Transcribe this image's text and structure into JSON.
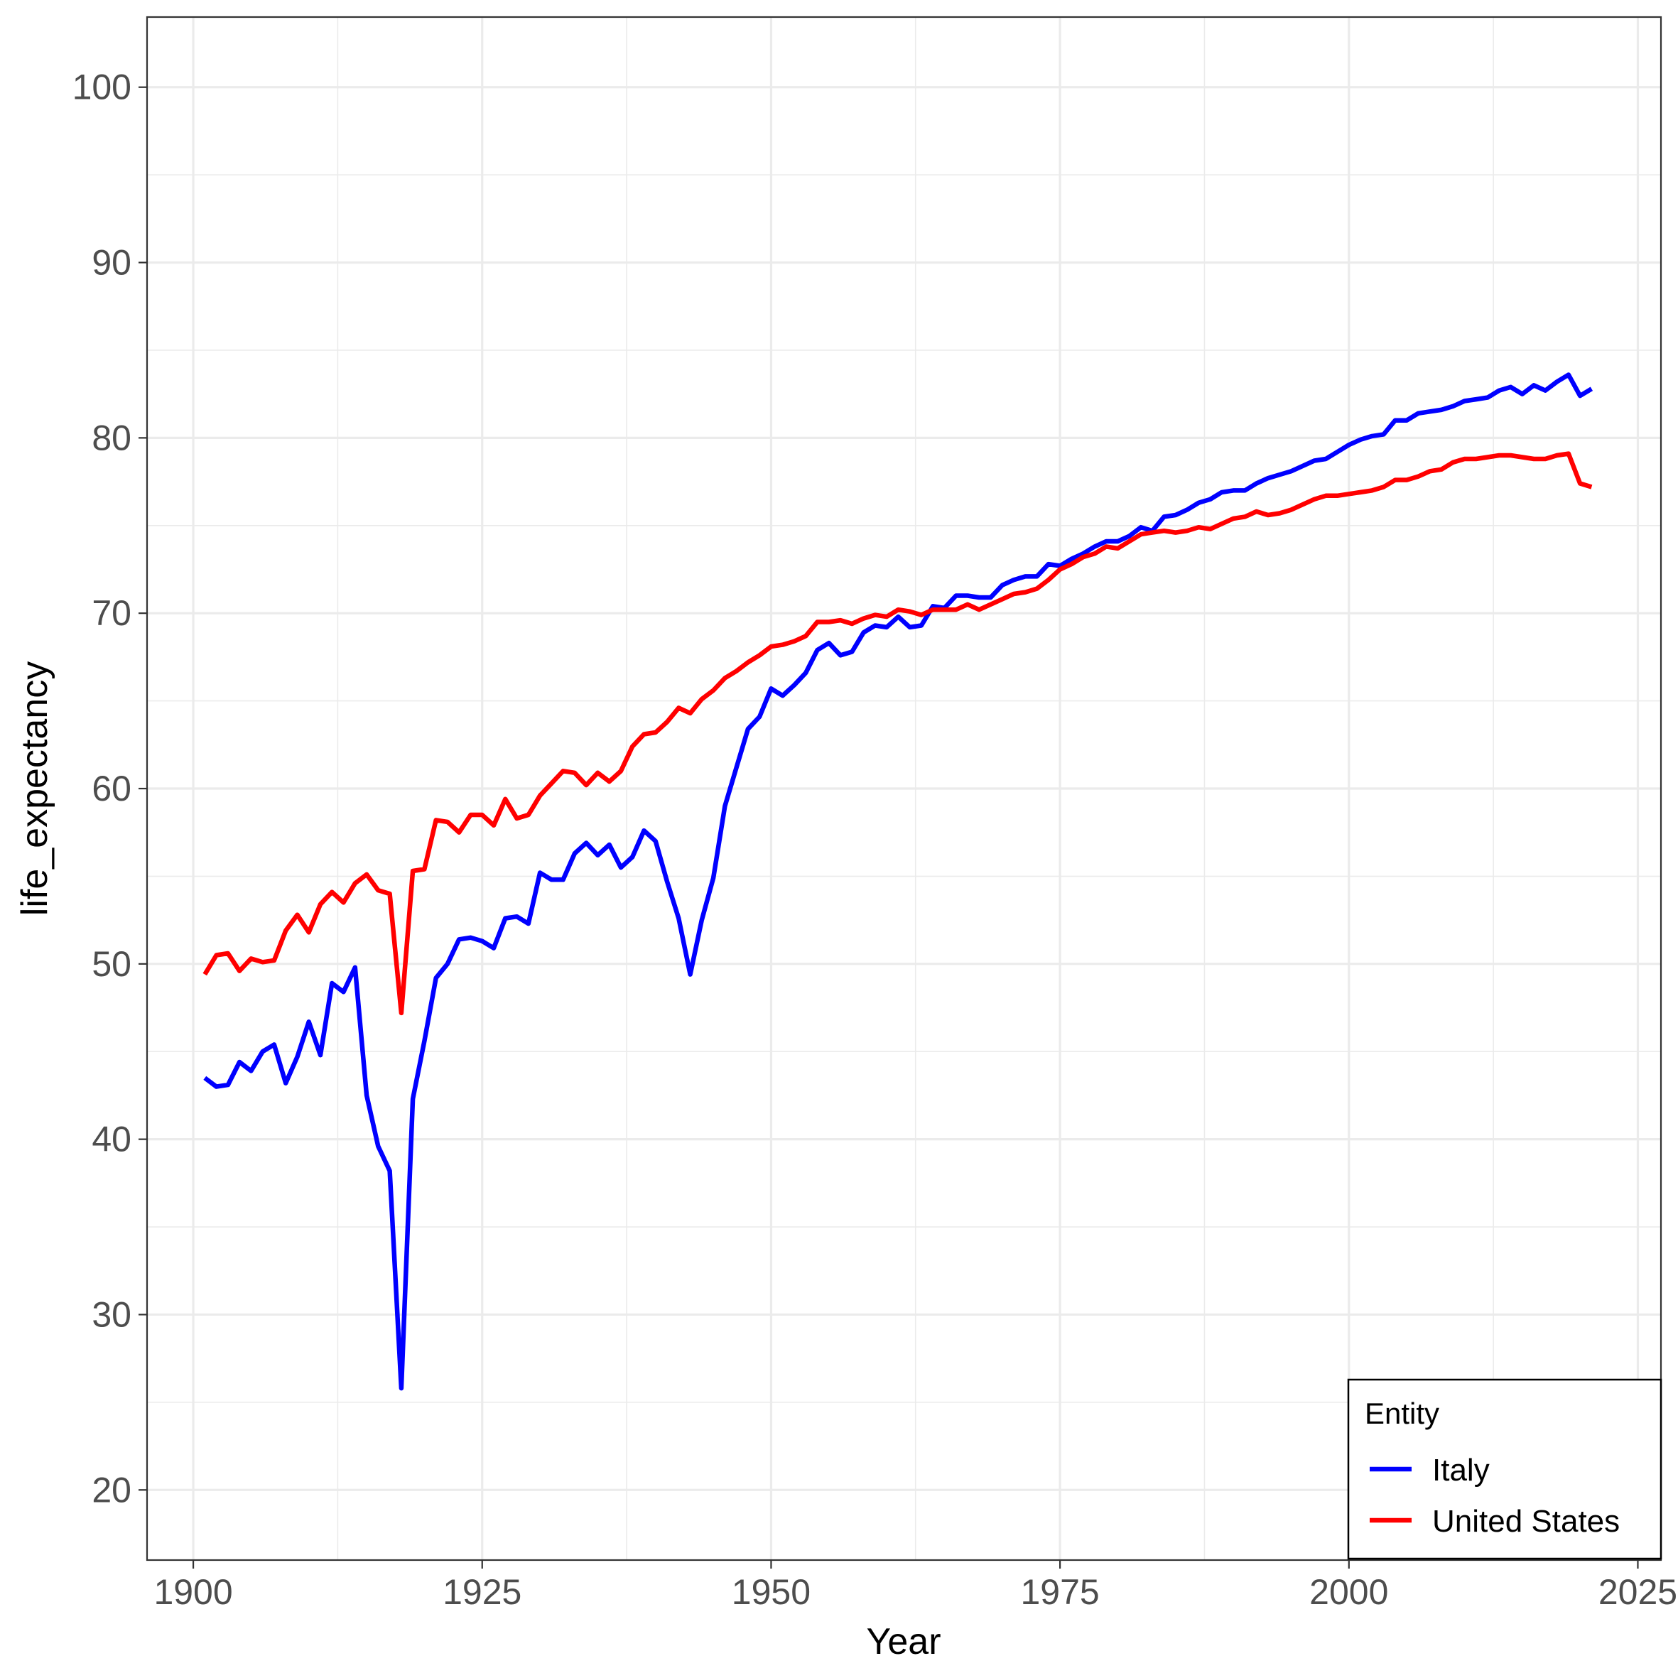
{
  "chart_data": {
    "type": "line",
    "title": "",
    "xlabel": "Year",
    "ylabel": "life_expectancy",
    "xlim": [
      1896,
      2027
    ],
    "ylim": [
      16,
      104
    ],
    "x_ticks": [
      1900,
      1925,
      1950,
      1975,
      2000,
      2025
    ],
    "y_ticks": [
      20,
      30,
      40,
      50,
      60,
      70,
      80,
      90,
      100
    ],
    "grid": true,
    "legend": {
      "title": "Entity",
      "position": "bottom-right"
    },
    "series": [
      {
        "name": "Italy",
        "color": "#0000ff",
        "x": [
          1901,
          1902,
          1903,
          1904,
          1905,
          1906,
          1907,
          1908,
          1909,
          1910,
          1911,
          1912,
          1913,
          1914,
          1915,
          1916,
          1917,
          1918,
          1919,
          1920,
          1921,
          1922,
          1923,
          1924,
          1925,
          1926,
          1927,
          1928,
          1929,
          1930,
          1931,
          1932,
          1933,
          1934,
          1935,
          1936,
          1937,
          1938,
          1939,
          1940,
          1941,
          1942,
          1943,
          1944,
          1945,
          1946,
          1947,
          1948,
          1949,
          1950,
          1951,
          1952,
          1953,
          1954,
          1955,
          1956,
          1957,
          1958,
          1959,
          1960,
          1961,
          1962,
          1963,
          1964,
          1965,
          1966,
          1967,
          1968,
          1969,
          1970,
          1971,
          1972,
          1973,
          1974,
          1975,
          1976,
          1977,
          1978,
          1979,
          1980,
          1981,
          1982,
          1983,
          1984,
          1985,
          1986,
          1987,
          1988,
          1989,
          1990,
          1991,
          1992,
          1993,
          1994,
          1995,
          1996,
          1997,
          1998,
          1999,
          2000,
          2001,
          2002,
          2003,
          2004,
          2005,
          2006,
          2007,
          2008,
          2009,
          2010,
          2011,
          2012,
          2013,
          2014,
          2015,
          2016,
          2017,
          2018,
          2019,
          2020,
          2021
        ],
        "y": [
          43.5,
          43.0,
          43.1,
          44.4,
          43.9,
          45.0,
          45.4,
          43.2,
          44.7,
          46.7,
          44.8,
          48.9,
          48.4,
          49.8,
          42.5,
          39.6,
          38.2,
          25.8,
          42.3,
          45.6,
          49.2,
          50.0,
          51.4,
          51.5,
          51.3,
          50.9,
          52.6,
          52.7,
          52.3,
          55.2,
          54.8,
          54.8,
          56.3,
          56.9,
          56.2,
          56.8,
          55.5,
          56.1,
          57.6,
          57.0,
          54.7,
          52.6,
          49.4,
          52.5,
          54.9,
          59.0,
          61.2,
          63.4,
          64.1,
          65.7,
          65.3,
          65.9,
          66.6,
          67.9,
          68.3,
          67.6,
          67.8,
          68.9,
          69.3,
          69.2,
          69.8,
          69.2,
          69.3,
          70.4,
          70.3,
          71.0,
          71.0,
          70.9,
          70.9,
          71.6,
          71.9,
          72.1,
          72.1,
          72.8,
          72.7,
          73.1,
          73.4,
          73.8,
          74.1,
          74.1,
          74.4,
          74.9,
          74.7,
          75.5,
          75.6,
          75.9,
          76.3,
          76.5,
          76.9,
          77.0,
          77.0,
          77.4,
          77.7,
          77.9,
          78.1,
          78.4,
          78.7,
          78.8,
          79.2,
          79.6,
          79.9,
          80.1,
          80.2,
          81.0,
          81.0,
          81.4,
          81.5,
          81.6,
          81.8,
          82.1,
          82.2,
          82.3,
          82.7,
          82.9,
          82.5,
          83.0,
          82.7,
          83.2,
          83.6,
          82.4,
          82.8
        ]
      },
      {
        "name": "United States",
        "color": "#ff0000",
        "x": [
          1901,
          1902,
          1903,
          1904,
          1905,
          1906,
          1907,
          1908,
          1909,
          1910,
          1911,
          1912,
          1913,
          1914,
          1915,
          1916,
          1917,
          1918,
          1919,
          1920,
          1921,
          1922,
          1923,
          1924,
          1925,
          1926,
          1927,
          1928,
          1929,
          1930,
          1931,
          1932,
          1933,
          1934,
          1935,
          1936,
          1937,
          1938,
          1939,
          1940,
          1941,
          1942,
          1943,
          1944,
          1945,
          1946,
          1947,
          1948,
          1949,
          1950,
          1951,
          1952,
          1953,
          1954,
          1955,
          1956,
          1957,
          1958,
          1959,
          1960,
          1961,
          1962,
          1963,
          1964,
          1965,
          1966,
          1967,
          1968,
          1969,
          1970,
          1971,
          1972,
          1973,
          1974,
          1975,
          1976,
          1977,
          1978,
          1979,
          1980,
          1981,
          1982,
          1983,
          1984,
          1985,
          1986,
          1987,
          1988,
          1989,
          1990,
          1991,
          1992,
          1993,
          1994,
          1995,
          1996,
          1997,
          1998,
          1999,
          2000,
          2001,
          2002,
          2003,
          2004,
          2005,
          2006,
          2007,
          2008,
          2009,
          2010,
          2011,
          2012,
          2013,
          2014,
          2015,
          2016,
          2017,
          2018,
          2019,
          2020,
          2021
        ],
        "y": [
          49.4,
          50.5,
          50.6,
          49.6,
          50.3,
          50.1,
          50.2,
          51.9,
          52.8,
          51.8,
          53.4,
          54.1,
          53.5,
          54.6,
          55.1,
          54.2,
          54.0,
          47.2,
          55.3,
          55.4,
          58.2,
          58.1,
          57.5,
          58.5,
          58.5,
          57.9,
          59.4,
          58.3,
          58.5,
          59.6,
          60.3,
          61.0,
          60.9,
          60.2,
          60.9,
          60.4,
          61.0,
          62.4,
          63.1,
          63.2,
          63.8,
          64.6,
          64.3,
          65.1,
          65.6,
          66.3,
          66.7,
          67.2,
          67.6,
          68.1,
          68.2,
          68.4,
          68.7,
          69.5,
          69.5,
          69.6,
          69.4,
          69.7,
          69.9,
          69.8,
          70.2,
          70.1,
          69.9,
          70.2,
          70.2,
          70.2,
          70.5,
          70.2,
          70.5,
          70.8,
          71.1,
          71.2,
          71.4,
          71.9,
          72.5,
          72.8,
          73.2,
          73.4,
          73.8,
          73.7,
          74.1,
          74.5,
          74.6,
          74.7,
          74.6,
          74.7,
          74.9,
          74.8,
          75.1,
          75.4,
          75.5,
          75.8,
          75.6,
          75.7,
          75.9,
          76.2,
          76.5,
          76.7,
          76.7,
          76.8,
          76.9,
          77.0,
          77.2,
          77.6,
          77.6,
          77.8,
          78.1,
          78.2,
          78.6,
          78.8,
          78.8,
          78.9,
          79.0,
          79.0,
          78.9,
          78.8,
          78.8,
          79.0,
          79.1,
          77.4,
          77.2
        ]
      }
    ]
  }
}
